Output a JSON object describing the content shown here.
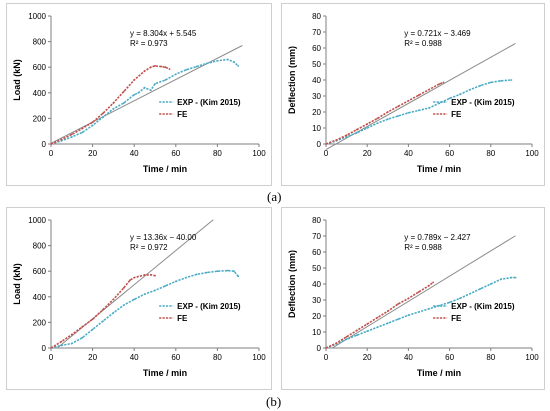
{
  "labels": {
    "a": "(a)",
    "b": "(b)"
  },
  "colors": {
    "exp": "#4bacc6",
    "fe": "#c0504d",
    "fit": "#8c8c8c",
    "axis": "#7f7f7f",
    "text": "#000000"
  },
  "chart_data": [
    {
      "id": "a-load",
      "type": "line",
      "xlabel": "Time / min",
      "ylabel": "Load (kN)",
      "xlim": [
        0,
        100
      ],
      "ylim": [
        0,
        1000
      ],
      "xticks": [
        "0",
        "20",
        "40",
        "60",
        "80",
        "100"
      ],
      "yticks": [
        "0",
        "200",
        "400",
        "600",
        "800",
        "1000"
      ],
      "legend_position": "bottom-right",
      "annotation": {
        "equation": "y = 8.304x + 5.545",
        "r2": "R² = 0.973"
      },
      "fit_line": {
        "slope": 8.304,
        "intercept": 5.545,
        "x_range": [
          0,
          92
        ]
      },
      "series": [
        {
          "name": "EXP - (Kim 2015)",
          "style": "exp",
          "x": [
            0,
            5,
            10,
            15,
            20,
            25,
            30,
            35,
            40,
            42,
            45,
            48,
            50,
            55,
            60,
            65,
            70,
            75,
            80,
            85,
            88,
            90
          ],
          "y": [
            0,
            25,
            55,
            90,
            145,
            210,
            275,
            320,
            385,
            400,
            440,
            420,
            470,
            500,
            545,
            580,
            605,
            630,
            650,
            660,
            640,
            610
          ]
        },
        {
          "name": "FE",
          "style": "fe",
          "x": [
            0,
            5,
            10,
            15,
            20,
            25,
            30,
            35,
            40,
            45,
            48,
            50,
            53,
            55,
            57
          ],
          "y": [
            0,
            35,
            75,
            120,
            170,
            240,
            320,
            410,
            500,
            570,
            600,
            610,
            605,
            600,
            585
          ]
        }
      ]
    },
    {
      "id": "a-deflection",
      "type": "line",
      "xlabel": "Time / min",
      "ylabel": "Deflection (mm)",
      "xlim": [
        0,
        100
      ],
      "ylim": [
        0,
        80
      ],
      "xticks": [
        "0",
        "20",
        "40",
        "60",
        "80",
        "100"
      ],
      "yticks": [
        "0",
        "10",
        "20",
        "30",
        "40",
        "50",
        "60",
        "70",
        "80"
      ],
      "legend_position": "bottom-right",
      "annotation": {
        "equation": "y = 0.721x − 3.469",
        "r2": "R² = 0.988"
      },
      "fit_line": {
        "slope": 0.721,
        "intercept": -3.469,
        "x_range": [
          0,
          92
        ]
      },
      "series": [
        {
          "name": "EXP - (Kim 2015)",
          "style": "exp",
          "x": [
            0,
            5,
            10,
            15,
            20,
            25,
            30,
            35,
            40,
            45,
            50,
            55,
            60,
            65,
            70,
            75,
            80,
            85,
            90
          ],
          "y": [
            0,
            2,
            4.5,
            7,
            10,
            13,
            15.5,
            17.5,
            19.5,
            21,
            22.5,
            25.5,
            28.5,
            31,
            34,
            36.5,
            38.5,
            39.5,
            40
          ]
        },
        {
          "name": "FE",
          "style": "fe",
          "x": [
            0,
            5,
            10,
            15,
            20,
            25,
            30,
            35,
            40,
            45,
            50,
            55,
            57
          ],
          "y": [
            0,
            2.5,
            5.5,
            9,
            12.5,
            16,
            20,
            23.5,
            27,
            30.5,
            34,
            37.5,
            38.5
          ]
        }
      ]
    },
    {
      "id": "b-load",
      "type": "line",
      "xlabel": "Time / min",
      "ylabel": "Load (kN)",
      "xlim": [
        0,
        100
      ],
      "ylim": [
        0,
        1000
      ],
      "xticks": [
        "0",
        "20",
        "40",
        "60",
        "80",
        "100"
      ],
      "yticks": [
        "0",
        "200",
        "400",
        "600",
        "800",
        "1000"
      ],
      "legend_position": "bottom-right",
      "annotation": {
        "equation": "y = 13.36x − 40.00",
        "r2": "R² = 0.972"
      },
      "fit_line": {
        "slope": 13.36,
        "intercept": -40.0,
        "x_range": [
          3,
          78
        ]
      },
      "series": [
        {
          "name": "EXP - (Kim 2015)",
          "style": "exp",
          "x": [
            0,
            5,
            10,
            15,
            20,
            25,
            30,
            35,
            40,
            45,
            50,
            55,
            60,
            65,
            70,
            75,
            80,
            85,
            88,
            90
          ],
          "y": [
            0,
            20,
            35,
            80,
            145,
            210,
            275,
            335,
            380,
            420,
            450,
            485,
            520,
            550,
            575,
            590,
            600,
            605,
            600,
            560
          ]
        },
        {
          "name": "FE",
          "style": "fe",
          "x": [
            0,
            5,
            10,
            15,
            20,
            25,
            30,
            35,
            38,
            40,
            45,
            48,
            50
          ],
          "y": [
            0,
            50,
            105,
            165,
            225,
            300,
            380,
            470,
            530,
            550,
            570,
            572,
            565
          ]
        }
      ]
    },
    {
      "id": "b-deflection",
      "type": "line",
      "xlabel": "Time / min",
      "ylabel": "Deflection (mm)",
      "xlim": [
        0,
        100
      ],
      "ylim": [
        0,
        80
      ],
      "xticks": [
        "0",
        "20",
        "40",
        "60",
        "80",
        "100"
      ],
      "yticks": [
        "0",
        "10",
        "20",
        "30",
        "40",
        "50",
        "60",
        "70",
        "80"
      ],
      "legend_position": "bottom-right",
      "annotation": {
        "equation": "y = 0.789x − 2.427",
        "r2": "R² = 0.988"
      },
      "fit_line": {
        "slope": 0.789,
        "intercept": -2.427,
        "x_range": [
          3,
          92
        ]
      },
      "series": [
        {
          "name": "EXP - (Kim 2015)",
          "style": "exp",
          "x": [
            0,
            5,
            10,
            15,
            20,
            25,
            30,
            35,
            40,
            45,
            50,
            55,
            60,
            65,
            70,
            75,
            80,
            85,
            90,
            92
          ],
          "y": [
            0,
            2.5,
            5.5,
            8,
            10.5,
            13,
            15.5,
            18,
            20.5,
            22.5,
            24.5,
            26.5,
            28.5,
            31,
            34,
            37,
            40,
            43,
            44,
            44
          ]
        },
        {
          "name": "FE",
          "style": "fe",
          "x": [
            0,
            5,
            10,
            15,
            20,
            25,
            30,
            35,
            40,
            45,
            50,
            52
          ],
          "y": [
            0,
            3,
            7,
            11,
            15,
            19,
            23,
            27.5,
            31,
            35,
            39,
            41
          ]
        }
      ]
    }
  ]
}
